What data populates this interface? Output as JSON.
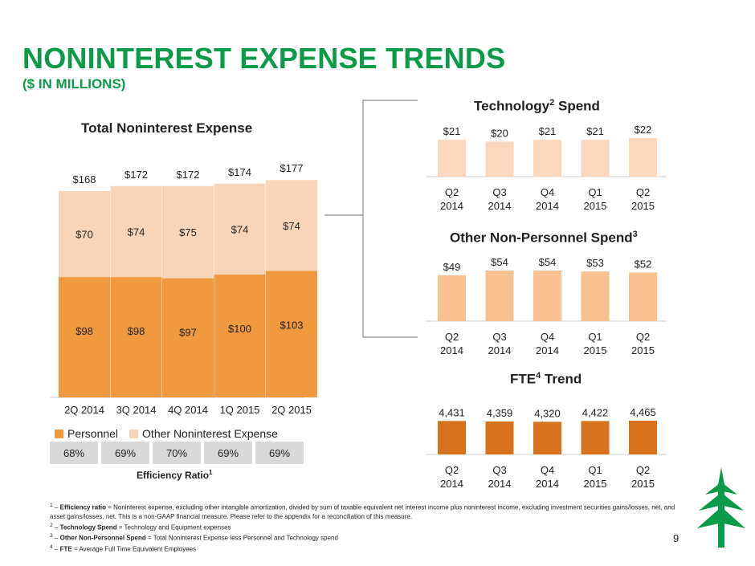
{
  "header": {
    "title": "NONINTEREST EXPENSE TRENDS",
    "subtitle": "($ IN MILLIONS)"
  },
  "chart_data": [
    {
      "type": "bar",
      "stacked": true,
      "title": "Total Noninterest Expense",
      "categories": [
        "2Q 2014",
        "3Q 2014",
        "4Q 2014",
        "1Q 2015",
        "2Q 2015"
      ],
      "series": [
        {
          "name": "Personnel",
          "values": [
            98,
            98,
            97,
            100,
            103
          ],
          "labels": [
            "$98",
            "$98",
            "$97",
            "$100",
            "$103"
          ],
          "color": "#f0993f"
        },
        {
          "name": "Other Noninterest Expense",
          "values": [
            70,
            74,
            75,
            74,
            74
          ],
          "labels": [
            "$70",
            "$74",
            "$75",
            "$74",
            "$74"
          ],
          "color": "#f8d5b8"
        }
      ],
      "totals": [
        168,
        172,
        172,
        174,
        177
      ],
      "total_labels": [
        "$168",
        "$172",
        "$172",
        "$174",
        "$177"
      ],
      "legend": "bottom",
      "efficiency_ratio": {
        "label": "Efficiency Ratio",
        "values": [
          "68%",
          "69%",
          "70%",
          "69%",
          "69%"
        ]
      }
    },
    {
      "type": "bar",
      "title": "Technology",
      "title_suffix": " Spend",
      "categories": [
        [
          "Q2",
          "2014"
        ],
        [
          "Q3",
          "2014"
        ],
        [
          "Q4",
          "2014"
        ],
        [
          "Q1",
          "2015"
        ],
        [
          "Q2",
          "2015"
        ]
      ],
      "values": [
        21,
        20,
        21,
        21,
        22
      ],
      "labels": [
        "$21",
        "$20",
        "$21",
        "$21",
        "$22"
      ],
      "color": "#fbd7bd"
    },
    {
      "type": "bar",
      "title": "Other Non-Personnel Spend",
      "categories": [
        [
          "Q2",
          "2014"
        ],
        [
          "Q3",
          "2014"
        ],
        [
          "Q4",
          "2014"
        ],
        [
          "Q1",
          "2015"
        ],
        [
          "Q2",
          "2015"
        ]
      ],
      "values": [
        49,
        54,
        54,
        53,
        52
      ],
      "labels": [
        "$49",
        "$54",
        "$54",
        "$53",
        "$52"
      ],
      "color": "#f8c192"
    },
    {
      "type": "bar",
      "title": "FTE",
      "title_suffix": " Trend",
      "categories": [
        [
          "Q2",
          "2014"
        ],
        [
          "Q3",
          "2014"
        ],
        [
          "Q4",
          "2014"
        ],
        [
          "Q1",
          "2015"
        ],
        [
          "Q2",
          "2015"
        ]
      ],
      "values": [
        4431,
        4359,
        4320,
        4422,
        4465
      ],
      "labels": [
        "4,431",
        "4,359",
        "4,320",
        "4,422",
        "4,465"
      ],
      "color": "#d8721c"
    }
  ],
  "superscripts": {
    "efficiency": "1",
    "technology": "2",
    "other_non_personnel": "3",
    "fte": "4"
  },
  "footnotes": [
    {
      "num": "1",
      "dash": " – ",
      "term": "Efficiency ratio",
      "text": " = Noninterest expense, excluding other intangible amortization, divided by sum of taxable equivalent net interest income plus noninterest income, excluding investment securities gains/losses, net, and asset gains/losses, net.  This is a non-GAAP financial measure. Please refer to the appendix for a reconciliation of this measure."
    },
    {
      "num": "2",
      "dash": "  – ",
      "term": "Technology Spend",
      "text": " = Technology and Equipment expenses"
    },
    {
      "num": "3",
      "dash": " – ",
      "term": "Other Non-Personnel Spend",
      "text": " = Total Noninterest Expense less Personnel and Technology spend"
    },
    {
      "num": "4",
      "dash": " – ",
      "term": "FTE",
      "text": " = Average Full Time Equivalent Employees"
    }
  ],
  "page_number": "9",
  "logo": {
    "name": "tree-logo",
    "color": "#0b9a48"
  }
}
